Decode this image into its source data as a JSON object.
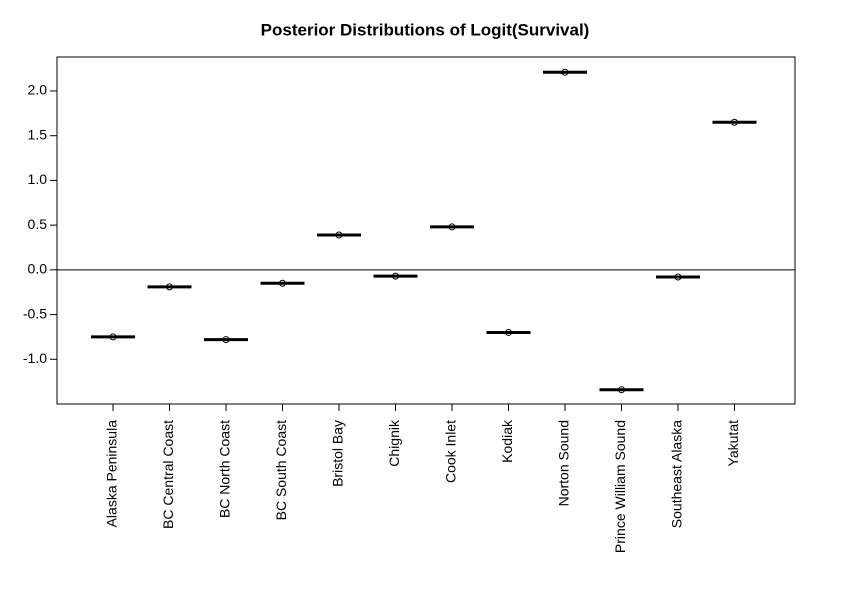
{
  "chart_data": {
    "type": "box",
    "title": "Posterior Distributions of Logit(Survival)",
    "categories": [
      "Alaska Peninsula",
      "BC Central Coast",
      "BC North Coast",
      "BC South Coast",
      "Bristol Bay",
      "Chignik",
      "Cook Inlet",
      "Kodiak",
      "Norton Sound",
      "Prince William Sound",
      "Southeast Alaska",
      "Yakutat"
    ],
    "values": [
      -0.75,
      -0.19,
      -0.78,
      -0.15,
      0.39,
      -0.07,
      0.48,
      -0.7,
      2.21,
      -1.34,
      -0.08,
      1.65
    ],
    "color": "#000000",
    "reference_line": 0,
    "ylim": [
      -1.5,
      2.38
    ],
    "yticks": [
      {
        "value": -1,
        "label": "-1.0"
      },
      {
        "value": -0.5,
        "label": "-0.5"
      },
      {
        "value": 0,
        "label": "0.0"
      },
      {
        "value": 0.5,
        "label": "0.5"
      },
      {
        "value": 1,
        "label": "1.0"
      },
      {
        "value": 1.5,
        "label": "1.5"
      },
      {
        "value": 2,
        "label": "2.0"
      }
    ]
  }
}
